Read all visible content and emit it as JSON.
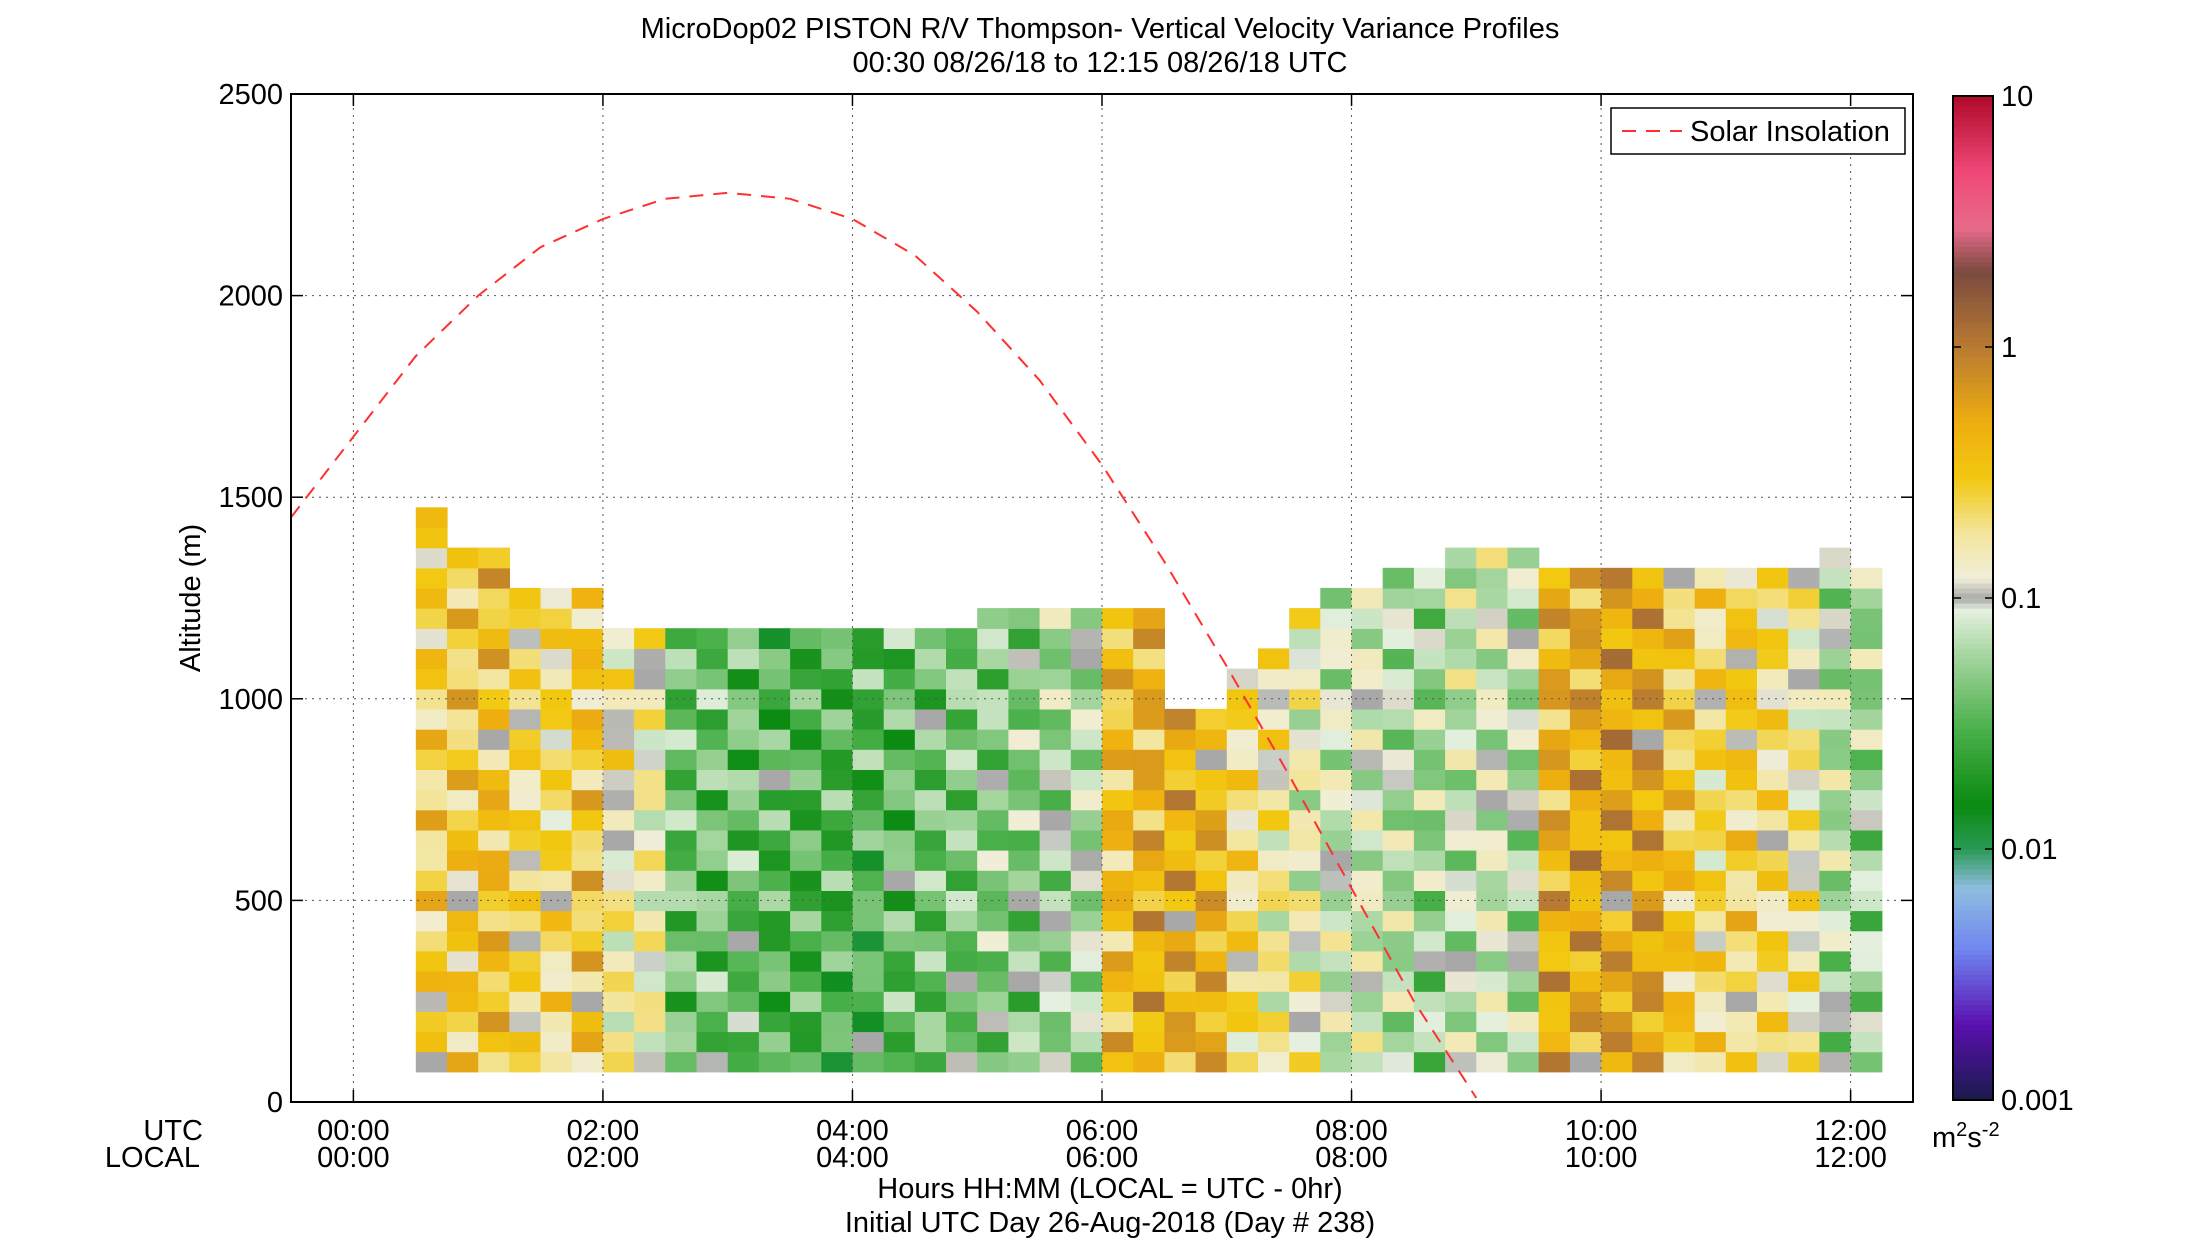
{
  "chart_data": {
    "type": "heatmap",
    "title": "MicroDop02 PISTON R/V Thompson- Vertical Velocity Variance Profiles",
    "subtitle": "00:30 08/26/18 to 12:15 08/26/18  UTC",
    "ylabel": "Altitude (m)",
    "xlabel": "Hours HH:MM  (LOCAL = UTC - 0hr)",
    "xlabel2": "Initial UTC Day 26-Aug-2018 (Day # 238)",
    "x_row_labels": [
      "UTC",
      "LOCAL"
    ],
    "xlim_hours": [
      -0.5,
      12.5
    ],
    "ylim": [
      0,
      2500
    ],
    "yticks": [
      0,
      500,
      1000,
      1500,
      2000,
      2500
    ],
    "ytick_labels": [
      "0",
      "500",
      "1000",
      "1500",
      "2000",
      "2500"
    ],
    "xticks_hours": [
      0,
      2,
      4,
      6,
      8,
      10,
      12
    ],
    "xtick_labels_utc": [
      "00:00",
      "02:00",
      "04:00",
      "06:00",
      "08:00",
      "10:00",
      "12:00"
    ],
    "xtick_labels_local": [
      "00:00",
      "02:00",
      "04:00",
      "06:00",
      "08:00",
      "10:00",
      "12:00"
    ],
    "grid": true,
    "legend": {
      "placement": "top-right",
      "entries": [
        "Solar Insolation"
      ]
    },
    "colorbar": {
      "scale": "log",
      "range": [
        0.001,
        10
      ],
      "tick_values": [
        0.001,
        0.01,
        0.1,
        1,
        10
      ],
      "tick_labels": [
        "0.001",
        "0.01",
        "0.1",
        "1",
        "10"
      ],
      "unit_base": "m",
      "unit_sup1": "2",
      "unit_mid": "s",
      "unit_sup2": "-2",
      "stops": [
        {
          "v": 0.001,
          "c": "#1a1a4a"
        },
        {
          "v": 0.002,
          "c": "#5a10b0"
        },
        {
          "v": 0.004,
          "c": "#6f86f0"
        },
        {
          "v": 0.007,
          "c": "#8fbde0"
        },
        {
          "v": 0.01,
          "c": "#2a9a55"
        },
        {
          "v": 0.015,
          "c": "#0a8a10"
        },
        {
          "v": 0.03,
          "c": "#4ab04a"
        },
        {
          "v": 0.06,
          "c": "#a6d6a0"
        },
        {
          "v": 0.09,
          "c": "#e6f0e0"
        },
        {
          "v": 0.1,
          "c": "#a8a8a8"
        },
        {
          "v": 0.12,
          "c": "#f0eed8"
        },
        {
          "v": 0.18,
          "c": "#f3e6a0"
        },
        {
          "v": 0.3,
          "c": "#f2c810"
        },
        {
          "v": 0.5,
          "c": "#eeae10"
        },
        {
          "v": 1,
          "c": "#b87a30"
        },
        {
          "v": 2,
          "c": "#7a4a40"
        },
        {
          "v": 3,
          "c": "#e86a8a"
        },
        {
          "v": 5,
          "c": "#f04878"
        },
        {
          "v": 10,
          "c": "#b00a2a"
        }
      ]
    },
    "time_bin_hours": 0.25,
    "alt_bin_m": 50,
    "alt_bottom_m": 75,
    "column_starts_hours": [
      0.5,
      0.75,
      1.0,
      1.25,
      1.5,
      1.75,
      2.0,
      2.25,
      2.5,
      2.75,
      3.0,
      3.25,
      3.5,
      3.75,
      4.0,
      4.25,
      4.5,
      4.75,
      5.0,
      5.25,
      5.5,
      5.75,
      6.0,
      6.25,
      6.5,
      6.75,
      7.0,
      7.25,
      7.5,
      7.75,
      8.0,
      8.25,
      8.5,
      8.75,
      9.0,
      9.25,
      9.5,
      9.75,
      10.0,
      10.25,
      10.5,
      10.75,
      11.0,
      11.25,
      11.5,
      11.75,
      12.0
    ],
    "column_tops_m": [
      1475,
      1375,
      1375,
      1275,
      1275,
      1275,
      1175,
      1175,
      1175,
      1175,
      1175,
      1175,
      1175,
      1175,
      1175,
      1175,
      1175,
      1175,
      1225,
      1225,
      1225,
      1225,
      1225,
      1225,
      975,
      975,
      1075,
      1125,
      1225,
      1275,
      1275,
      1325,
      1325,
      1375,
      1375,
      1375,
      1325,
      1325,
      1325,
      1325,
      1325,
      1325,
      1325,
      1325,
      1325,
      1375,
      1325
    ],
    "column_base_variance": [
      0.25,
      0.28,
      0.35,
      0.2,
      0.2,
      0.3,
      0.15,
      0.13,
      0.04,
      0.04,
      0.04,
      0.03,
      0.03,
      0.03,
      0.03,
      0.035,
      0.04,
      0.045,
      0.05,
      0.05,
      0.06,
      0.07,
      0.35,
      0.45,
      0.45,
      0.45,
      0.2,
      0.15,
      0.12,
      0.09,
      0.09,
      0.07,
      0.06,
      0.08,
      0.09,
      0.07,
      0.45,
      0.5,
      0.55,
      0.55,
      0.3,
      0.2,
      0.25,
      0.2,
      0.15,
      0.07,
      0.06
    ],
    "solar_insolation_curve": {
      "x_hours": [
        -0.5,
        0.0,
        0.5,
        1.0,
        1.5,
        2.0,
        2.5,
        3.0,
        3.5,
        4.0,
        4.5,
        5.0,
        5.5,
        6.0,
        6.5,
        7.0,
        7.5,
        8.0,
        8.5,
        9.0
      ],
      "y_m": [
        1450,
        1650,
        1850,
        2000,
        2120,
        2190,
        2240,
        2255,
        2240,
        2190,
        2100,
        1960,
        1790,
        1580,
        1340,
        1080,
        810,
        530,
        250,
        10
      ]
    }
  }
}
